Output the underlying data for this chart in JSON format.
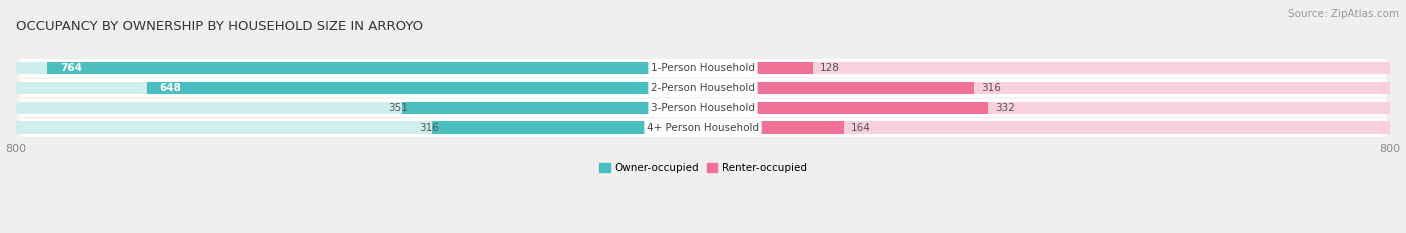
{
  "title": "OCCUPANCY BY OWNERSHIP BY HOUSEHOLD SIZE IN ARROYO",
  "source": "Source: ZipAtlas.com",
  "categories": [
    "1-Person Household",
    "2-Person Household",
    "3-Person Household",
    "4+ Person Household"
  ],
  "owner_values": [
    764,
    648,
    351,
    316
  ],
  "renter_values": [
    128,
    316,
    332,
    164
  ],
  "owner_color": "#4BBFBF",
  "renter_color": "#F07098",
  "owner_light_color": "#D0EEEE",
  "renter_light_color": "#F9D0DE",
  "bg_color": "#EFEFEF",
  "row_bg_color": "#F8F8F8",
  "axis_max": 800,
  "legend_owner": "Owner-occupied",
  "legend_renter": "Renter-occupied",
  "title_fontsize": 9.5,
  "label_fontsize": 7.5,
  "tick_fontsize": 8,
  "source_fontsize": 7.5,
  "value_inside_color": "white",
  "value_outside_color": "#555555",
  "cat_label_color": "#444444"
}
